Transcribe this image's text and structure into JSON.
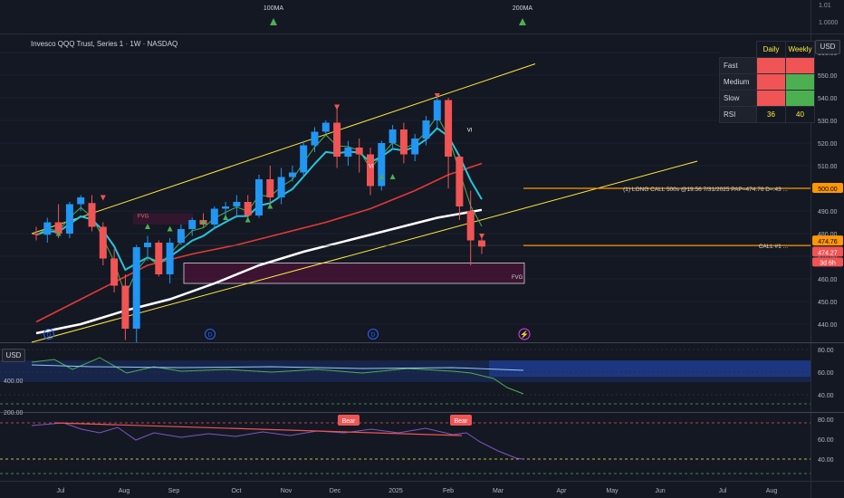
{
  "header": {
    "symbol_title": "Invesco QQQ Trust, Series 1 · 1W · NASDAQ",
    "currency_button": "USD",
    "indicator_currency": "USD"
  },
  "signal_table": {
    "col_daily": "Daily",
    "col_weekly": "Weekly",
    "rows": [
      {
        "label": "Fast",
        "daily": "red",
        "weekly": "red"
      },
      {
        "label": "Medium",
        "daily": "red",
        "weekly": "green"
      },
      {
        "label": "Slow",
        "daily": "red",
        "weekly": "green"
      },
      {
        "label": "RSI",
        "daily_value": "36",
        "weekly_value": "40"
      }
    ]
  },
  "annotations": {
    "ma100_label": "100MA",
    "ma200_label": "200MA",
    "fvg_label": "FVG",
    "vi_label": "VI",
    "position_label": "(1) LONG CALL 500s @19.56 7/31/2025 PAP=474.76 D=.43 ...",
    "call_label": "CALL #1 ...",
    "bear_labels": [
      "Bear",
      "Bear"
    ],
    "event_markers": [
      "D",
      "D",
      "D"
    ]
  },
  "price_tags": {
    "level_500": "500.00",
    "last_close": "474.76",
    "current": "474.27",
    "countdown": "3d 6h"
  },
  "top_scale": [
    "1.01",
    "1.0000"
  ],
  "colors": {
    "background": "#141823",
    "up": "#2196f3",
    "down": "#f05454",
    "channel": "#ffeb3b",
    "ma_white": "#ffffff",
    "ma_cyan": "#26c6da",
    "ma_green": "#4caf50",
    "ma_red": "#e53935",
    "position_line": "#ff9800"
  },
  "chart_data": [
    {
      "type": "candlestick",
      "title": "Invesco QQQ Trust, Series 1 · 1W · NASDAQ",
      "ylim": [
        432,
        568
      ],
      "y_ticks": [
        440,
        450,
        460,
        470,
        480,
        490,
        500,
        510,
        520,
        530,
        540,
        550,
        560
      ],
      "x_tick_labels": [
        "Jul",
        "Aug",
        "Sep",
        "Oct",
        "Nov",
        "Dec",
        "2025",
        "Feb",
        "Mar",
        "Apr",
        "May",
        "Jun",
        "Jul",
        "Aug"
      ],
      "candles": [
        {
          "o": 480.0,
          "h": 483.0,
          "l": 477.0,
          "c": 479.5
        },
        {
          "o": 479.5,
          "h": 487.0,
          "l": 476.0,
          "c": 485.0
        },
        {
          "o": 485.0,
          "h": 493.0,
          "l": 478.0,
          "c": 480.0
        },
        {
          "o": 480.0,
          "h": 494.0,
          "l": 478.0,
          "c": 493.0
        },
        {
          "o": 493.0,
          "h": 497.0,
          "l": 490.0,
          "c": 496.0
        },
        {
          "o": 493.5,
          "h": 497.0,
          "l": 481.0,
          "c": 483.0
        },
        {
          "o": 483.0,
          "h": 485.0,
          "l": 466.0,
          "c": 469.0
        },
        {
          "o": 469.0,
          "h": 473.0,
          "l": 454.0,
          "c": 457.0
        },
        {
          "o": 457.0,
          "h": 462.0,
          "l": 433.0,
          "c": 438.0
        },
        {
          "o": 438.0,
          "h": 475.0,
          "l": 432.0,
          "c": 474.0
        },
        {
          "o": 474.0,
          "h": 479.0,
          "l": 468.0,
          "c": 476.0
        },
        {
          "o": 476.0,
          "h": 477.0,
          "l": 461.0,
          "c": 462.0
        },
        {
          "o": 462.0,
          "h": 478.0,
          "l": 458.0,
          "c": 476.0
        },
        {
          "o": 476.0,
          "h": 484.0,
          "l": 475.0,
          "c": 482.0
        },
        {
          "o": 482.0,
          "h": 487.0,
          "l": 479.0,
          "c": 486.0
        },
        {
          "o": 486.0,
          "h": 489.0,
          "l": 483.0,
          "c": 484.0
        },
        {
          "o": 484.0,
          "h": 492.0,
          "l": 482.0,
          "c": 491.0
        },
        {
          "o": 491.0,
          "h": 494.0,
          "l": 488.0,
          "c": 492.0
        },
        {
          "o": 492.0,
          "h": 497.0,
          "l": 487.0,
          "c": 494.0
        },
        {
          "o": 494.0,
          "h": 497.0,
          "l": 486.0,
          "c": 488.0
        },
        {
          "o": 488.0,
          "h": 506.0,
          "l": 487.0,
          "c": 504.0
        },
        {
          "o": 504.0,
          "h": 510.0,
          "l": 493.0,
          "c": 496.0
        },
        {
          "o": 496.0,
          "h": 509.0,
          "l": 493.0,
          "c": 505.0
        },
        {
          "o": 505.0,
          "h": 510.0,
          "l": 503.0,
          "c": 507.0
        },
        {
          "o": 507.0,
          "h": 521.0,
          "l": 505.0,
          "c": 519.0
        },
        {
          "o": 519.0,
          "h": 527.0,
          "l": 516.0,
          "c": 525.0
        },
        {
          "o": 525.0,
          "h": 530.0,
          "l": 524.0,
          "c": 529.0
        },
        {
          "o": 529.0,
          "h": 536.0,
          "l": 509.0,
          "c": 514.0
        },
        {
          "o": 514.0,
          "h": 521.0,
          "l": 510.0,
          "c": 518.0
        },
        {
          "o": 518.0,
          "h": 522.0,
          "l": 507.0,
          "c": 515.0
        },
        {
          "o": 515.0,
          "h": 518.0,
          "l": 497.0,
          "c": 501.0
        },
        {
          "o": 501.0,
          "h": 521.0,
          "l": 499.0,
          "c": 520.0
        },
        {
          "o": 520.0,
          "h": 528.0,
          "l": 517.0,
          "c": 526.0
        },
        {
          "o": 526.0,
          "h": 529.0,
          "l": 511.0,
          "c": 515.0
        },
        {
          "o": 515.0,
          "h": 524.0,
          "l": 512.0,
          "c": 522.0
        },
        {
          "o": 522.0,
          "h": 532.0,
          "l": 519.0,
          "c": 530.0
        },
        {
          "o": 530.0,
          "h": 541.0,
          "l": 527.0,
          "c": 539.0
        },
        {
          "o": 539.0,
          "h": 540.0,
          "l": 500.0,
          "c": 514.0
        },
        {
          "o": 514.0,
          "h": 515.0,
          "l": 486.0,
          "c": 492.0
        },
        {
          "o": 490.0,
          "h": 499.0,
          "l": 466.0,
          "c": 477.0
        },
        {
          "o": 477.0,
          "h": 478.0,
          "l": 471.0,
          "c": 474.27
        }
      ],
      "series": [
        {
          "name": "200MA",
          "values": [
            [
              0,
              436
            ],
            [
              4,
              440
            ],
            [
              8,
              446
            ],
            [
              12,
              451
            ],
            [
              16,
              458
            ],
            [
              20,
              466
            ],
            [
              24,
              472
            ],
            [
              28,
              477
            ],
            [
              32,
              482
            ],
            [
              36,
              487
            ],
            [
              40,
              490.5
            ]
          ]
        },
        {
          "name": "100MA",
          "values": [
            [
              0,
              441
            ],
            [
              4,
              451
            ],
            [
              8,
              461
            ],
            [
              10,
              466
            ],
            [
              14,
              471
            ],
            [
              18,
              475
            ],
            [
              22,
              480
            ],
            [
              26,
              485
            ],
            [
              30,
              491
            ],
            [
              34,
              499
            ],
            [
              37,
              506
            ],
            [
              40,
              511
            ]
          ]
        }
      ],
      "channel_labels": [
        "100MA",
        "200MA"
      ],
      "price_levels": [
        500,
        474.76,
        474.27
      ]
    },
    {
      "type": "line",
      "y_ticks": [
        40,
        60,
        80
      ],
      "left_ticks": [
        400,
        200
      ]
    },
    {
      "type": "line",
      "y_ticks": [
        40,
        60,
        80
      ],
      "labels": [
        "Bear",
        "Bear"
      ]
    }
  ]
}
